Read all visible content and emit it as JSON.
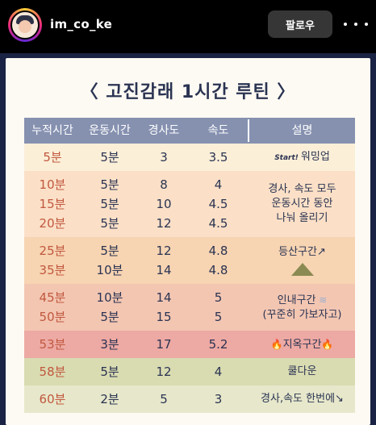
{
  "header": {
    "username": "im_co_ke",
    "follow_label": "팔로우",
    "icons": {
      "more": "more-horizontal-icon",
      "avatar": "profile-avatar"
    }
  },
  "post": {
    "title": "〈 고진감래 1시간 루틴 〉",
    "columns": [
      "누적시간",
      "운동시간",
      "경사도",
      "속도",
      "설명"
    ],
    "groups": [
      {
        "color": "#fcefd8",
        "rows": [
          [
            "5분",
            "5분",
            "3",
            "3.5"
          ]
        ],
        "desc": {
          "tag": "Start!",
          "lines": [
            "워밍업"
          ]
        }
      },
      {
        "color": "#fbe0c7",
        "rows": [
          [
            "10분",
            "5분",
            "8",
            "4"
          ],
          [
            "15분",
            "5분",
            "10",
            "4.5"
          ],
          [
            "20분",
            "5분",
            "12",
            "4.5"
          ]
        ],
        "desc": {
          "lines": [
            "경사, 속도 모두",
            "운동시간 동안",
            "나눠 올리기"
          ]
        }
      },
      {
        "color": "#f7d4b2",
        "rows": [
          [
            "25분",
            "5분",
            "12",
            "4.8"
          ],
          [
            "35분",
            "10분",
            "14",
            "4.8"
          ]
        ],
        "desc": {
          "lines": [
            "등산구간↗"
          ],
          "icon": "mountain-icon"
        }
      },
      {
        "color": "#f3c6b2",
        "rows": [
          [
            "45분",
            "10분",
            "14",
            "5"
          ],
          [
            "50분",
            "5분",
            "15",
            "5"
          ]
        ],
        "desc": {
          "lines": [
            "인내구간",
            "(꾸준히 가보자고)"
          ],
          "icon": "wind-icon"
        }
      },
      {
        "color": "#eda9a3",
        "rows": [
          [
            "53분",
            "3분",
            "17",
            "5.2"
          ]
        ],
        "desc": {
          "lines": [
            "지옥구간"
          ],
          "icon": "fire-icon"
        }
      },
      {
        "color": "#d9dbb1",
        "rows": [
          [
            "58분",
            "5분",
            "12",
            "4"
          ]
        ],
        "desc": {
          "lines": [
            "쿨다운"
          ]
        }
      },
      {
        "color": "#e7e8cb",
        "rows": [
          [
            "60분",
            "2분",
            "5",
            "3"
          ]
        ],
        "desc": {
          "lines": [
            "경사,속도 한번에↘"
          ]
        }
      }
    ]
  }
}
